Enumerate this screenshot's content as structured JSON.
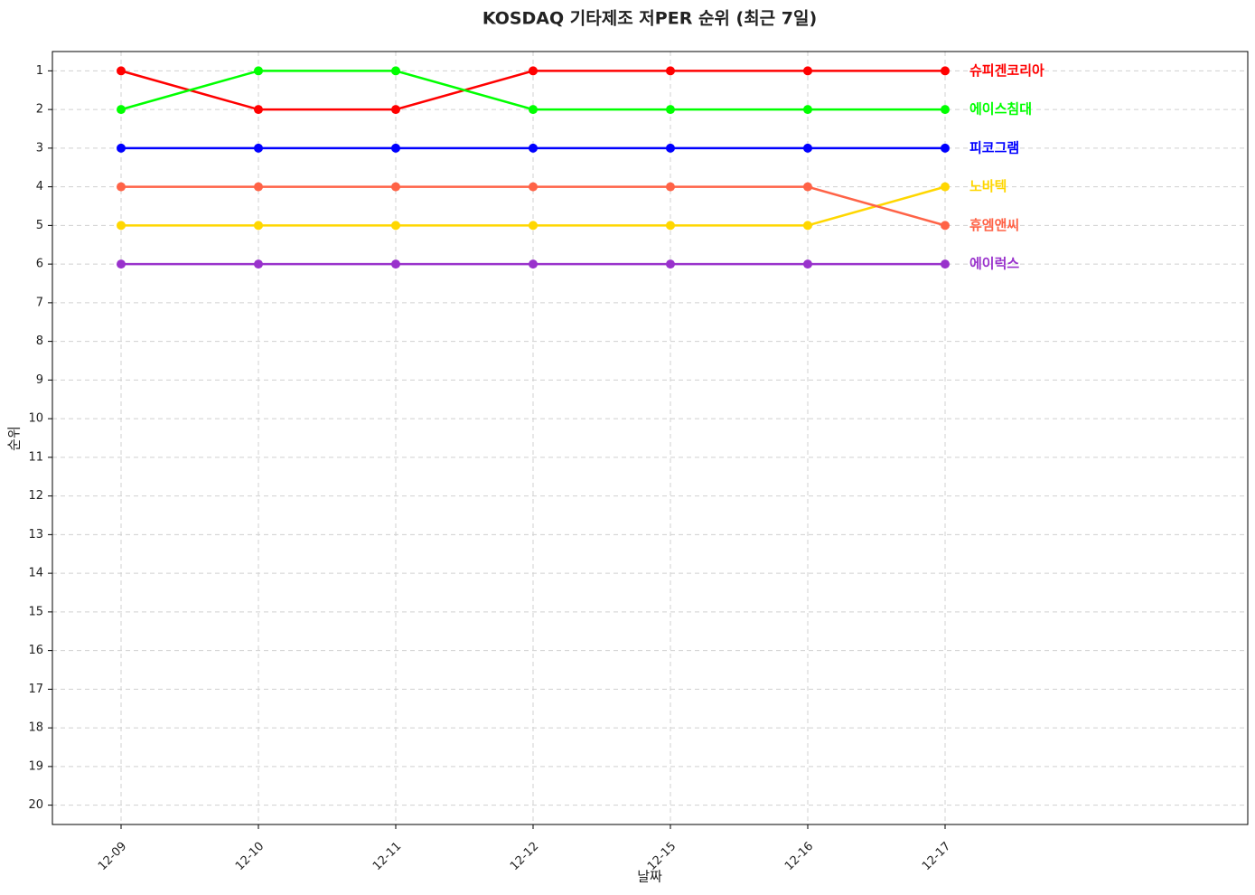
{
  "chart_data": {
    "type": "line",
    "title": "KOSDAQ 기타제조 저PER 순위 (최근 7일)",
    "x_label": "날짜",
    "y_label": "순위",
    "categories": [
      "12-09",
      "12-10",
      "12-11",
      "12-12",
      "12-15",
      "12-16",
      "12-17"
    ],
    "ylim": [
      20.5,
      0.5
    ],
    "y_inverted": true,
    "yticks": [
      1,
      2,
      3,
      4,
      5,
      6,
      7,
      8,
      9,
      10,
      11,
      12,
      13,
      14,
      15,
      16,
      17,
      18,
      19,
      20
    ],
    "grid": true,
    "series": [
      {
        "name": "슈피겐코리아",
        "color": "#ff0000",
        "values": [
          1,
          2,
          2,
          1,
          1,
          1,
          1
        ]
      },
      {
        "name": "에이스침대",
        "color": "#00ff00",
        "values": [
          2,
          1,
          1,
          2,
          2,
          2,
          2
        ]
      },
      {
        "name": "피코그램",
        "color": "#0000ff",
        "values": [
          3,
          3,
          3,
          3,
          3,
          3,
          3
        ]
      },
      {
        "name": "노바텍",
        "color": "#ffd700",
        "values": [
          5,
          5,
          5,
          5,
          5,
          5,
          4
        ]
      },
      {
        "name": "휴엠앤씨",
        "color": "#ff6347",
        "values": [
          4,
          4,
          4,
          4,
          4,
          4,
          5
        ]
      },
      {
        "name": "에이럭스",
        "color": "#9932cc",
        "values": [
          6,
          6,
          6,
          6,
          6,
          6,
          6
        ]
      }
    ]
  }
}
